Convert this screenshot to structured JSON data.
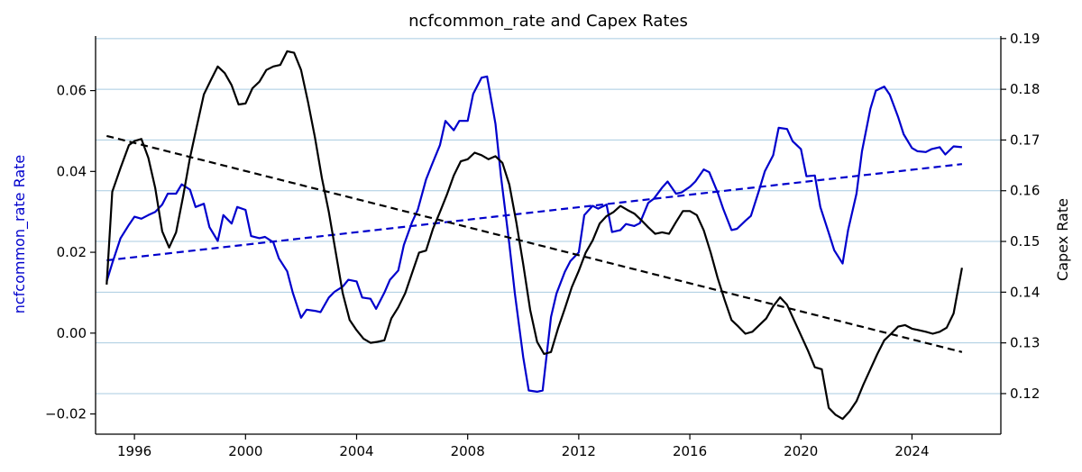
{
  "chart_data": {
    "type": "line",
    "title": "ncfcommon_rate and Capex Rates",
    "ylabel_left": "ncfcommon_rate Rate",
    "ylabel_right": "Capex Rate",
    "xlim": [
      1994.6,
      2027.2
    ],
    "ylim_left": [
      -0.025,
      0.0735
    ],
    "ylim_right": [
      0.112,
      0.1905
    ],
    "x_ticks": [
      1996,
      2000,
      2004,
      2008,
      2012,
      2016,
      2020,
      2024
    ],
    "y_ticks_left": [
      -0.02,
      0.0,
      0.02,
      0.04,
      0.06
    ],
    "y_ticks_right": [
      0.12,
      0.13,
      0.14,
      0.15,
      0.16,
      0.17,
      0.18,
      0.19
    ],
    "grid": "horizontal lines at right-axis ticks",
    "colors": {
      "left_series": "#0000cc",
      "right_series": "#000000",
      "grid": "#a8cbe0",
      "left_label": "#0000cc"
    },
    "series": [
      {
        "axis": "left",
        "style": "solid",
        "color": "#0000cc",
        "points": [
          [
            1995.0,
            0.0128
          ],
          [
            1995.2,
            0.0173
          ],
          [
            1995.5,
            0.0235
          ],
          [
            1995.8,
            0.0268
          ],
          [
            1996.0,
            0.0288
          ],
          [
            1996.25,
            0.0283
          ],
          [
            1996.5,
            0.0292
          ],
          [
            1996.75,
            0.03
          ],
          [
            1997.0,
            0.0318
          ],
          [
            1997.2,
            0.0345
          ],
          [
            1997.5,
            0.0345
          ],
          [
            1997.7,
            0.0368
          ],
          [
            1998.0,
            0.0355
          ],
          [
            1998.2,
            0.0312
          ],
          [
            1998.5,
            0.032
          ],
          [
            1998.7,
            0.0262
          ],
          [
            1999.0,
            0.0228
          ],
          [
            1999.2,
            0.0292
          ],
          [
            1999.5,
            0.0271
          ],
          [
            1999.7,
            0.0312
          ],
          [
            2000.0,
            0.0305
          ],
          [
            2000.2,
            0.024
          ],
          [
            2000.5,
            0.0235
          ],
          [
            2000.7,
            0.0238
          ],
          [
            2001.0,
            0.0225
          ],
          [
            2001.2,
            0.0185
          ],
          [
            2001.5,
            0.0153
          ],
          [
            2001.7,
            0.01
          ],
          [
            2002.0,
            0.0038
          ],
          [
            2002.2,
            0.0058
          ],
          [
            2002.5,
            0.0055
          ],
          [
            2002.7,
            0.0052
          ],
          [
            2003.0,
            0.0088
          ],
          [
            2003.2,
            0.0102
          ],
          [
            2003.5,
            0.0115
          ],
          [
            2003.7,
            0.0132
          ],
          [
            2004.0,
            0.0128
          ],
          [
            2004.2,
            0.0088
          ],
          [
            2004.5,
            0.0085
          ],
          [
            2004.7,
            0.006
          ],
          [
            2005.0,
            0.01
          ],
          [
            2005.2,
            0.0132
          ],
          [
            2005.5,
            0.0155
          ],
          [
            2005.7,
            0.0218
          ],
          [
            2006.0,
            0.0275
          ],
          [
            2006.2,
            0.0305
          ],
          [
            2006.5,
            0.038
          ],
          [
            2006.7,
            0.0415
          ],
          [
            2007.0,
            0.0465
          ],
          [
            2007.2,
            0.0525
          ],
          [
            2007.5,
            0.0502
          ],
          [
            2007.7,
            0.0525
          ],
          [
            2008.0,
            0.0525
          ],
          [
            2008.2,
            0.0592
          ],
          [
            2008.5,
            0.0632
          ],
          [
            2008.7,
            0.0635
          ],
          [
            2009.0,
            0.0518
          ],
          [
            2009.2,
            0.0388
          ],
          [
            2009.5,
            0.022
          ],
          [
            2009.7,
            0.0098
          ],
          [
            2010.0,
            -0.006
          ],
          [
            2010.2,
            -0.0142
          ],
          [
            2010.5,
            -0.0145
          ],
          [
            2010.7,
            -0.0142
          ],
          [
            2011.0,
            0.004
          ],
          [
            2011.2,
            0.0098
          ],
          [
            2011.5,
            0.0152
          ],
          [
            2011.7,
            0.0178
          ],
          [
            2012.0,
            0.02
          ],
          [
            2012.2,
            0.0292
          ],
          [
            2012.5,
            0.0315
          ],
          [
            2012.7,
            0.0308
          ],
          [
            2013.0,
            0.0318
          ],
          [
            2013.2,
            0.025
          ],
          [
            2013.5,
            0.0255
          ],
          [
            2013.7,
            0.027
          ],
          [
            2014.0,
            0.0265
          ],
          [
            2014.2,
            0.0272
          ],
          [
            2014.5,
            0.0322
          ],
          [
            2014.7,
            0.0332
          ],
          [
            2015.0,
            0.036
          ],
          [
            2015.2,
            0.0375
          ],
          [
            2015.5,
            0.0345
          ],
          [
            2015.7,
            0.0348
          ],
          [
            2016.0,
            0.0362
          ],
          [
            2016.2,
            0.0375
          ],
          [
            2016.5,
            0.0405
          ],
          [
            2016.7,
            0.0398
          ],
          [
            2017.0,
            0.0348
          ],
          [
            2017.2,
            0.0308
          ],
          [
            2017.5,
            0.0255
          ],
          [
            2017.7,
            0.0258
          ],
          [
            2018.0,
            0.0278
          ],
          [
            2018.2,
            0.029
          ],
          [
            2018.5,
            0.0355
          ],
          [
            2018.7,
            0.04
          ],
          [
            2019.0,
            0.044
          ],
          [
            2019.2,
            0.0508
          ],
          [
            2019.5,
            0.0505
          ],
          [
            2019.7,
            0.0475
          ],
          [
            2020.0,
            0.0455
          ],
          [
            2020.2,
            0.0388
          ],
          [
            2020.5,
            0.039
          ],
          [
            2020.7,
            0.0312
          ],
          [
            2021.0,
            0.0248
          ],
          [
            2021.2,
            0.0205
          ],
          [
            2021.5,
            0.0172
          ],
          [
            2021.7,
            0.0255
          ],
          [
            2022.0,
            0.0345
          ],
          [
            2022.2,
            0.045
          ],
          [
            2022.5,
            0.0555
          ],
          [
            2022.7,
            0.06
          ],
          [
            2023.0,
            0.061
          ],
          [
            2023.2,
            0.059
          ],
          [
            2023.5,
            0.0535
          ],
          [
            2023.7,
            0.0492
          ],
          [
            2024.0,
            0.0458
          ],
          [
            2024.2,
            0.045
          ],
          [
            2024.5,
            0.0448
          ],
          [
            2024.7,
            0.0455
          ],
          [
            2025.0,
            0.046
          ],
          [
            2025.2,
            0.0442
          ],
          [
            2025.5,
            0.0462
          ],
          [
            2025.8,
            0.046
          ]
        ]
      },
      {
        "axis": "left",
        "style": "dashed",
        "color": "#0000cc",
        "points": [
          [
            1995.0,
            0.018
          ],
          [
            2025.8,
            0.0418
          ]
        ]
      },
      {
        "axis": "right",
        "style": "solid",
        "color": "#000000",
        "points": [
          [
            1995.0,
            0.1415
          ],
          [
            1995.2,
            0.1598
          ],
          [
            1995.5,
            0.1645
          ],
          [
            1995.8,
            0.169
          ],
          [
            1996.0,
            0.1698
          ],
          [
            1996.25,
            0.1702
          ],
          [
            1996.5,
            0.1665
          ],
          [
            1996.75,
            0.1605
          ],
          [
            1997.0,
            0.152
          ],
          [
            1997.25,
            0.1488
          ],
          [
            1997.5,
            0.1518
          ],
          [
            1997.75,
            0.1588
          ],
          [
            1998.0,
            0.1665
          ],
          [
            1998.25,
            0.1728
          ],
          [
            1998.5,
            0.179
          ],
          [
            1998.75,
            0.1818
          ],
          [
            1999.0,
            0.1845
          ],
          [
            1999.25,
            0.1832
          ],
          [
            1999.5,
            0.1808
          ],
          [
            1999.75,
            0.177
          ],
          [
            2000.0,
            0.1772
          ],
          [
            2000.25,
            0.1802
          ],
          [
            2000.5,
            0.1815
          ],
          [
            2000.75,
            0.1838
          ],
          [
            2001.0,
            0.1845
          ],
          [
            2001.25,
            0.1848
          ],
          [
            2001.5,
            0.1875
          ],
          [
            2001.75,
            0.1872
          ],
          [
            2002.0,
            0.1838
          ],
          [
            2002.25,
            0.1775
          ],
          [
            2002.5,
            0.1705
          ],
          [
            2002.75,
            0.1625
          ],
          [
            2003.0,
            0.1558
          ],
          [
            2003.25,
            0.1478
          ],
          [
            2003.5,
            0.1398
          ],
          [
            2003.75,
            0.1345
          ],
          [
            2004.0,
            0.1325
          ],
          [
            2004.25,
            0.1308
          ],
          [
            2004.5,
            0.13
          ],
          [
            2004.75,
            0.1302
          ],
          [
            2005.0,
            0.1305
          ],
          [
            2005.25,
            0.1348
          ],
          [
            2005.5,
            0.137
          ],
          [
            2005.75,
            0.1398
          ],
          [
            2006.0,
            0.1438
          ],
          [
            2006.25,
            0.1478
          ],
          [
            2006.5,
            0.1482
          ],
          [
            2006.75,
            0.1525
          ],
          [
            2007.0,
            0.1558
          ],
          [
            2007.25,
            0.1592
          ],
          [
            2007.5,
            0.163
          ],
          [
            2007.75,
            0.1658
          ],
          [
            2008.0,
            0.1662
          ],
          [
            2008.25,
            0.1675
          ],
          [
            2008.5,
            0.167
          ],
          [
            2008.75,
            0.1662
          ],
          [
            2009.0,
            0.1668
          ],
          [
            2009.25,
            0.1655
          ],
          [
            2009.5,
            0.1612
          ],
          [
            2009.75,
            0.1538
          ],
          [
            2010.0,
            0.1455
          ],
          [
            2010.25,
            0.1365
          ],
          [
            2010.5,
            0.1302
          ],
          [
            2010.75,
            0.1278
          ],
          [
            2011.0,
            0.1282
          ],
          [
            2011.25,
            0.1328
          ],
          [
            2011.5,
            0.1368
          ],
          [
            2011.75,
            0.141
          ],
          [
            2012.0,
            0.1442
          ],
          [
            2012.25,
            0.1478
          ],
          [
            2012.5,
            0.1502
          ],
          [
            2012.75,
            0.1535
          ],
          [
            2013.0,
            0.155
          ],
          [
            2013.25,
            0.1558
          ],
          [
            2013.5,
            0.157
          ],
          [
            2013.75,
            0.1562
          ],
          [
            2014.0,
            0.1555
          ],
          [
            2014.25,
            0.1542
          ],
          [
            2014.5,
            0.1528
          ],
          [
            2014.75,
            0.1515
          ],
          [
            2015.0,
            0.1518
          ],
          [
            2015.25,
            0.1515
          ],
          [
            2015.5,
            0.1538
          ],
          [
            2015.75,
            0.156
          ],
          [
            2016.0,
            0.156
          ],
          [
            2016.25,
            0.1552
          ],
          [
            2016.5,
            0.1522
          ],
          [
            2016.75,
            0.1478
          ],
          [
            2017.0,
            0.1428
          ],
          [
            2017.25,
            0.1385
          ],
          [
            2017.5,
            0.1345
          ],
          [
            2017.75,
            0.1332
          ],
          [
            2018.0,
            0.1318
          ],
          [
            2018.25,
            0.1322
          ],
          [
            2018.5,
            0.1335
          ],
          [
            2018.75,
            0.1348
          ],
          [
            2019.0,
            0.1372
          ],
          [
            2019.25,
            0.139
          ],
          [
            2019.5,
            0.1375
          ],
          [
            2019.75,
            0.1345
          ],
          [
            2020.0,
            0.1315
          ],
          [
            2020.25,
            0.1285
          ],
          [
            2020.5,
            0.1252
          ],
          [
            2020.75,
            0.1248
          ],
          [
            2021.0,
            0.1172
          ],
          [
            2021.25,
            0.1158
          ],
          [
            2021.5,
            0.115
          ],
          [
            2021.75,
            0.1165
          ],
          [
            2022.0,
            0.1185
          ],
          [
            2022.25,
            0.1218
          ],
          [
            2022.5,
            0.1248
          ],
          [
            2022.75,
            0.1278
          ],
          [
            2023.0,
            0.1305
          ],
          [
            2023.25,
            0.1318
          ],
          [
            2023.5,
            0.1332
          ],
          [
            2023.75,
            0.1335
          ],
          [
            2024.0,
            0.1328
          ],
          [
            2024.25,
            0.1325
          ],
          [
            2024.5,
            0.1322
          ],
          [
            2024.75,
            0.1318
          ],
          [
            2025.0,
            0.1322
          ],
          [
            2025.25,
            0.133
          ],
          [
            2025.5,
            0.1358
          ],
          [
            2025.8,
            0.1448
          ]
        ]
      },
      {
        "axis": "right",
        "style": "dashed",
        "color": "#000000",
        "points": [
          [
            1995.0,
            0.1708
          ],
          [
            2025.8,
            0.1282
          ]
        ]
      }
    ]
  }
}
